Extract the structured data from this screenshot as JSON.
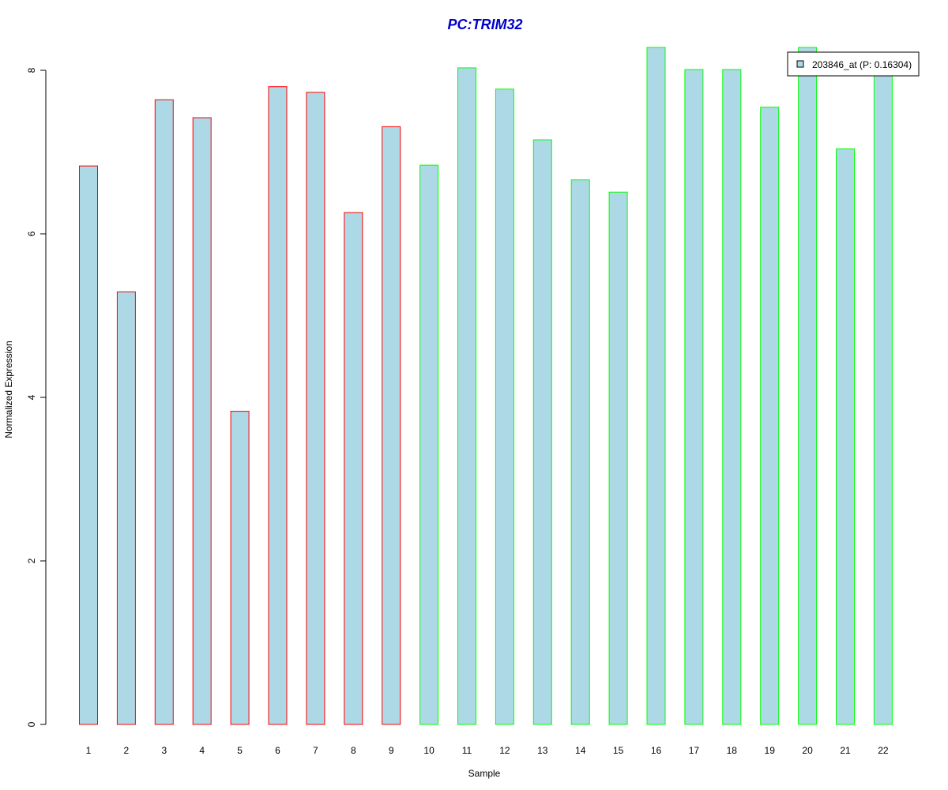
{
  "chart_data": {
    "type": "bar",
    "title": "PC:TRIM32",
    "xlabel": "Sample",
    "ylabel": "Normalized Expression",
    "categories": [
      "1",
      "2",
      "3",
      "4",
      "5",
      "6",
      "7",
      "8",
      "9",
      "10",
      "11",
      "12",
      "13",
      "14",
      "15",
      "16",
      "17",
      "18",
      "19",
      "20",
      "21",
      "22"
    ],
    "series": [
      {
        "name": "203846_at (P: 0.16304)",
        "values": [
          6.83,
          5.29,
          7.64,
          7.42,
          3.83,
          7.8,
          7.73,
          6.26,
          7.31,
          6.84,
          8.03,
          7.77,
          7.15,
          6.66,
          6.51,
          8.28,
          8.01,
          8.01,
          7.55,
          8.28,
          7.04,
          8.0
        ],
        "fill": "#add8e6"
      }
    ],
    "bar_border_colors": [
      "#ff0000",
      "#ff0000",
      "#ff0000",
      "#ff0000",
      "#ff0000",
      "#ff0000",
      "#ff0000",
      "#ff0000",
      "#ff0000",
      "#00ff00",
      "#00ff00",
      "#00ff00",
      "#00ff00",
      "#00ff00",
      "#00ff00",
      "#00ff00",
      "#00ff00",
      "#00ff00",
      "#00ff00",
      "#00ff00",
      "#00ff00",
      "#00ff00"
    ],
    "ylim": [
      0,
      8
    ],
    "yticks": [
      0,
      2,
      4,
      6,
      8
    ],
    "grid": false,
    "legend_position": "top-right",
    "title_color": "#0000cc"
  }
}
